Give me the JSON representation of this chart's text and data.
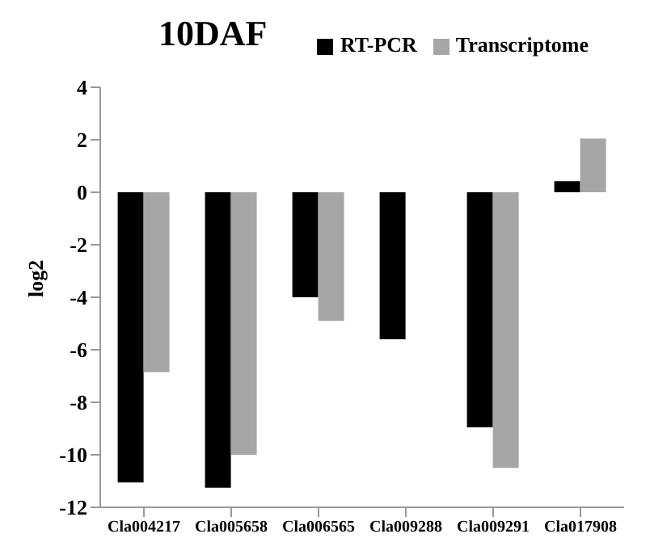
{
  "chart_data": {
    "type": "bar",
    "title": "10DAF",
    "ylabel": "log2",
    "categories": [
      "Cla004217",
      "Cla005658",
      "Cla006565",
      "Cla009288",
      "Cla009291",
      "Cla017908"
    ],
    "series": [
      {
        "name": "RT-PCR",
        "color": "#000000",
        "values": [
          -11.05,
          -11.25,
          -4,
          -5.6,
          -8.95,
          0.42
        ]
      },
      {
        "name": "Transcriptome",
        "color": "#a6a6a6",
        "values": [
          -6.85,
          -10,
          -4.9,
          null,
          -10.5,
          2.05
        ]
      }
    ],
    "ylim": [
      -12,
      4
    ],
    "yticks": [
      -12,
      -10,
      -8,
      -6,
      -4,
      -2,
      0,
      2,
      4
    ],
    "grid": false,
    "legend": "top right"
  }
}
